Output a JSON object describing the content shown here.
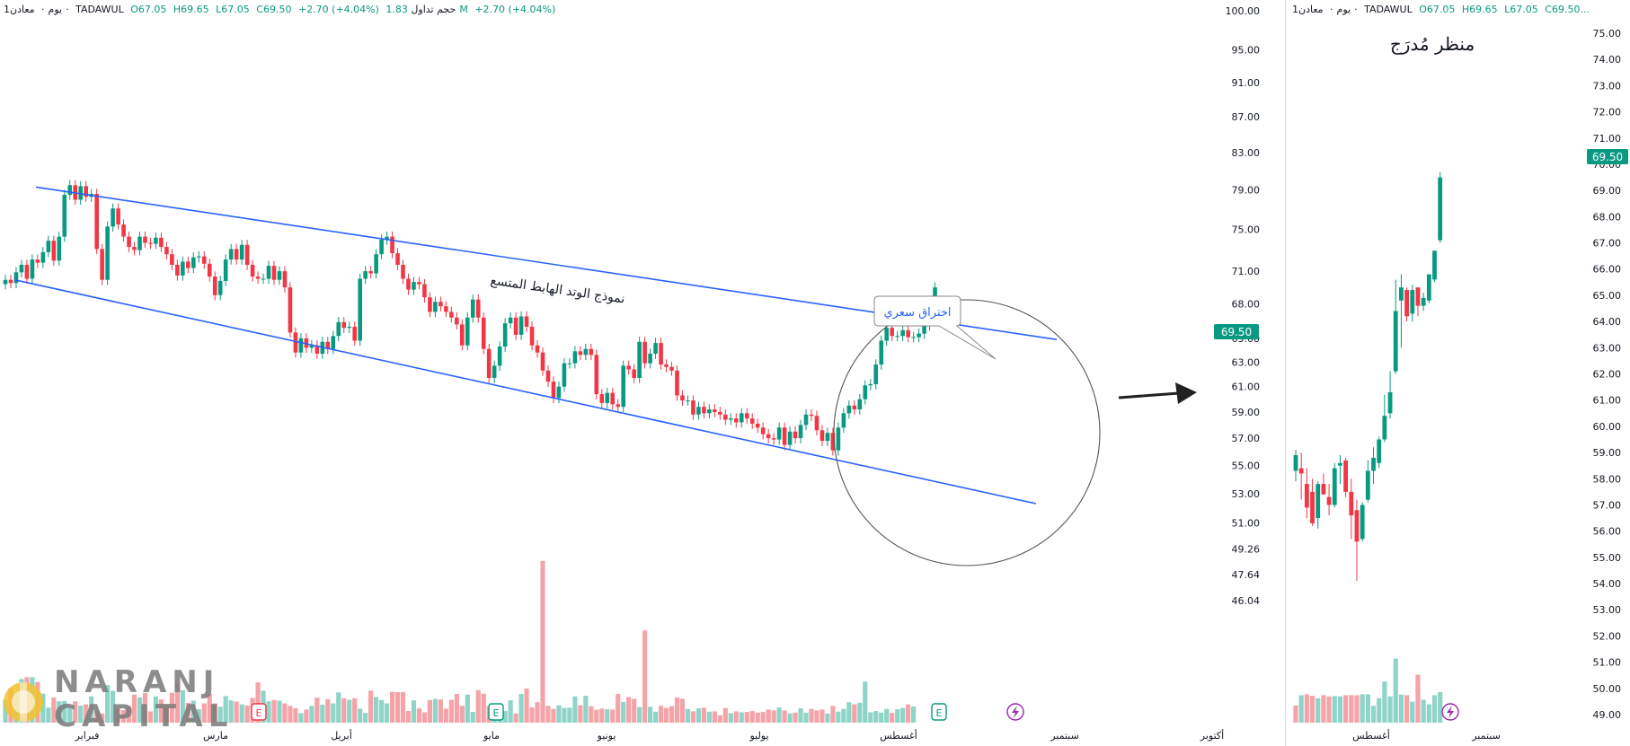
{
  "left_header": {
    "interval": "1يوم",
    "sector": "معادن",
    "exchange": "TADAWUL",
    "open": "O67.05",
    "high": "H69.65",
    "low": "L67.05",
    "close": "C69.50",
    "change": "+2.70 (+4.04%)",
    "volume_label": "حجم تداول",
    "volume_value": "1.83M",
    "volume_change": "+2.70 (+4.04%)"
  },
  "right_header": {
    "interval": "1يوم",
    "sector": "معادن",
    "exchange": "TADAWUL",
    "open": "O67.05",
    "high": "H69.65",
    "low": "L67.05",
    "close": "C69.50..."
  },
  "logo": {
    "line1": "NARANJ",
    "line2": "CAPITAL"
  },
  "colors": {
    "up": "#089981",
    "down": "#f23645",
    "vol_up": "#8fd4c8",
    "vol_down": "#f4a4a9",
    "trendline": "#2962ff",
    "circle": "#555555"
  },
  "chart_data": [
    {
      "type": "candlestick",
      "title": "",
      "annotations": {
        "pattern_label": "نموذج الوتد الهابط المتسع",
        "callout_label": "اختراق سعري",
        "current_price": "69.50"
      },
      "y_axis": {
        "scale": "log",
        "ticks": [
          "100.00",
          "95.00",
          "91.00",
          "87.00",
          "83.00",
          "79.00",
          "75.00",
          "71.00",
          "68.00",
          "65.00",
          "63.00",
          "61.00",
          "59.00",
          "57.00",
          "55.00",
          "53.00",
          "51.00",
          "49.26",
          "47.64",
          "46.04"
        ]
      },
      "x_axis": {
        "tick_labels": [
          "فبراير",
          "مارس",
          "أبريل",
          "مايو",
          "يونيو",
          "يوليو",
          "أغسطس",
          "سبتمبر",
          "أكتوبر"
        ]
      },
      "event_markers": [
        "E",
        "E",
        "E"
      ],
      "upper_trendline": {
        "from": {
          "date": "2024-01-25",
          "price": 79.3
        },
        "to": {
          "date": "2024-09-18",
          "price": 64.9
        }
      },
      "lower_trendline": {
        "from": {
          "date": "2024-01-25",
          "price": 70.2
        },
        "to": {
          "date": "2024-09-18",
          "price": 52.3
        }
      },
      "closes": [
        70.2,
        69.9,
        70.9,
        71.6,
        70.3,
        72.1,
        71.8,
        72.8,
        73.9,
        72.0,
        74.3,
        78.5,
        79.5,
        78.0,
        79.4,
        78.3,
        78.6,
        73.1,
        70.2,
        75.3,
        77.1,
        75.5,
        74.3,
        73.3,
        73.0,
        74.3,
        73.7,
        73.6,
        74.2,
        73.3,
        72.6,
        71.6,
        70.6,
        71.9,
        71.3,
        72.3,
        72.4,
        71.7,
        70.5,
        68.8,
        70.1,
        72.1,
        73.1,
        72.1,
        73.5,
        71.6,
        70.5,
        70.3,
        70.3,
        71.5,
        70.2,
        71.0,
        69.5,
        65.5,
        63.8,
        65.0,
        64.2,
        64.4,
        63.7,
        64.7,
        64.1,
        65.2,
        66.4,
        65.9,
        66.0,
        64.8,
        70.3,
        71.0,
        70.8,
        72.6,
        74.0,
        74.3,
        72.7,
        71.6,
        70.3,
        69.3,
        70.0,
        69.8,
        68.6,
        67.3,
        68.2,
        67.8,
        67.3,
        66.8,
        66.2,
        64.4,
        66.8,
        68.4,
        66.8,
        64.1,
        61.7,
        62.7,
        64.3,
        66.3,
        66.8,
        65.3,
        66.9,
        66.0,
        64.4,
        63.8,
        62.3,
        61.4,
        60.1,
        61.0,
        62.9,
        62.9,
        63.9,
        63.6,
        64.1,
        63.6,
        60.4,
        59.7,
        60.5,
        59.6,
        59.4,
        62.7,
        62.4,
        61.7,
        64.7,
        62.9,
        63.7,
        64.6,
        62.8,
        62.6,
        62.3,
        60.3,
        59.9,
        59.9,
        58.8,
        59.4,
        58.9,
        59.2,
        59.0,
        58.8,
        58.4,
        58.5,
        58.2,
        58.9,
        58.5,
        58.1,
        57.8,
        57.3,
        57.0,
        56.9,
        57.8,
        56.5,
        57.5,
        57.0,
        58.0,
        58.8,
        58.7,
        57.6,
        56.8,
        57.4,
        56.1,
        57.8,
        58.9,
        59.5,
        59.2,
        60.0,
        61.1,
        61.2,
        62.8,
        64.8,
        65.9,
        65.2,
        65.2,
        65.7,
        65.1,
        65.1,
        65.4,
        66.1,
        66.8,
        69.5
      ],
      "volumes": [
        0.74,
        1.13,
        0.92,
        1.43,
        1.49,
        1.49,
        1.33,
        0.95,
        0.49,
        0.82,
        0.7,
        0.71,
        0.51,
        0.7,
        0.56,
        0.6,
        0.86,
        0.38,
        0.3,
        1.23,
        1.05,
        0.48,
        0.41,
        0.54,
        0.92,
        0.83,
        0.97,
        0.37,
        0.86,
        0.76,
        0.6,
        0.98,
        1.28,
        1.06,
        0.65,
        0.72,
        0.44,
        0.63,
        0.95,
        0.63,
        0.52,
        0.87,
        0.73,
        0.69,
        0.6,
        0.56,
        0.81,
        1.32,
        1.05,
        0.7,
        0.74,
        0.72,
        0.63,
        0.55,
        0.47,
        0.31,
        0.43,
        0.55,
        0.82,
        0.59,
        0.77,
        0.63,
        0.99,
        0.8,
        0.75,
        0.8,
        0.46,
        0.32,
        1.05,
        0.84,
        0.74,
        0.63,
        1.01,
        1.0,
        1.0,
        0.38,
        0.73,
        0.47,
        0.34,
        0.74,
        0.78,
        0.76,
        0.46,
        0.75,
        0.94,
        0.55,
        0.92,
        0.35,
        1.07,
        0.95,
        0.54,
        0.49,
        0.62,
        0.38,
        0.73,
        0.3,
        0.94,
        1.12,
        0.5,
        0.67,
        5.3,
        0.55,
        0.45,
        0.57,
        0.48,
        0.49,
        0.86,
        0.57,
        0.88,
        0.54,
        0.42,
        0.46,
        0.44,
        0.43,
        0.94,
        0.68,
        0.84,
        0.78,
        0.51,
        3.02,
        0.52,
        0.36,
        0.55,
        0.48,
        0.54,
        0.83,
        0.78,
        0.45,
        0.37,
        0.47,
        0.49,
        0.36,
        0.37,
        0.24,
        0.48,
        0.31,
        0.37,
        0.34,
        0.35,
        0.38,
        0.33,
        0.35,
        0.43,
        0.4,
        0.5,
        0.4,
        0.3,
        0.33,
        0.47,
        0.33,
        0.45,
        0.4,
        0.43,
        0.3,
        0.55,
        0.36,
        0.45,
        0.67,
        0.6,
        0.65,
        1.35,
        0.34,
        0.38,
        0.33,
        0.45,
        0.32,
        0.44,
        0.48,
        0.6,
        0.53
      ]
    },
    {
      "type": "candlestick",
      "title": "منظر مُدرَج",
      "y_axis": {
        "scale": "linear",
        "ticks": [
          "75.00",
          "74.00",
          "73.00",
          "72.00",
          "71.00",
          "70.00",
          "69.00",
          "68.00",
          "67.00",
          "66.00",
          "65.00",
          "64.00",
          "63.00",
          "62.00",
          "61.00",
          "60.00",
          "59.00",
          "58.00",
          "57.00",
          "56.00",
          "55.00",
          "54.00",
          "53.00",
          "52.00",
          "51.00",
          "50.00",
          "49.00"
        ]
      },
      "x_axis": {
        "tick_labels": [
          "أغسطس",
          "سبتمبر"
        ]
      },
      "current_price": "69.50",
      "candles": [
        {
          "o": 58.3,
          "h": 59.1,
          "l": 57.9,
          "c": 58.9
        },
        {
          "o": 58.4,
          "h": 59.0,
          "l": 57.2,
          "c": 58.2
        },
        {
          "o": 57.8,
          "h": 58.4,
          "l": 56.5,
          "c": 56.9
        },
        {
          "o": 57.5,
          "h": 58.0,
          "l": 56.2,
          "c": 56.3
        },
        {
          "o": 56.5,
          "h": 57.9,
          "l": 56.1,
          "c": 57.8
        },
        {
          "o": 57.8,
          "h": 58.2,
          "l": 57.4,
          "c": 57.4
        },
        {
          "o": 57.3,
          "h": 57.8,
          "l": 56.6,
          "c": 57.0
        },
        {
          "o": 57.0,
          "h": 58.6,
          "l": 56.9,
          "c": 58.4
        },
        {
          "o": 58.5,
          "h": 58.9,
          "l": 57.8,
          "c": 58.6
        },
        {
          "o": 58.7,
          "h": 58.8,
          "l": 57.3,
          "c": 57.5
        },
        {
          "o": 57.5,
          "h": 58.0,
          "l": 55.7,
          "c": 56.6
        },
        {
          "o": 56.8,
          "h": 57.2,
          "l": 54.1,
          "c": 55.6
        },
        {
          "o": 55.7,
          "h": 57.1,
          "l": 55.6,
          "c": 57.0
        },
        {
          "o": 57.2,
          "h": 58.7,
          "l": 57.1,
          "c": 58.3
        },
        {
          "o": 58.3,
          "h": 59.2,
          "l": 57.8,
          "c": 58.8
        },
        {
          "o": 58.6,
          "h": 59.6,
          "l": 58.4,
          "c": 59.5
        },
        {
          "o": 59.5,
          "h": 61.2,
          "l": 59.4,
          "c": 60.4
        },
        {
          "o": 60.5,
          "h": 62.1,
          "l": 60.3,
          "c": 61.3
        },
        {
          "o": 62.1,
          "h": 65.6,
          "l": 62.0,
          "c": 64.4
        },
        {
          "o": 64.8,
          "h": 65.8,
          "l": 63.0,
          "c": 65.3
        },
        {
          "o": 65.2,
          "h": 65.3,
          "l": 64.0,
          "c": 64.2
        },
        {
          "o": 64.3,
          "h": 65.4,
          "l": 64.0,
          "c": 65.2
        },
        {
          "o": 65.3,
          "h": 65.3,
          "l": 64.2,
          "c": 64.6
        },
        {
          "o": 64.6,
          "h": 65.1,
          "l": 64.4,
          "c": 64.9
        },
        {
          "o": 64.8,
          "h": 65.8,
          "l": 64.7,
          "c": 65.8
        },
        {
          "o": 65.6,
          "h": 66.7,
          "l": 65.5,
          "c": 66.7
        },
        {
          "o": 67.1,
          "h": 69.7,
          "l": 67.0,
          "c": 69.5
        }
      ],
      "volumes": [
        0.56,
        0.9,
        0.93,
        0.88,
        0.8,
        0.9,
        0.86,
        0.87,
        0.86,
        0.9,
        0.9,
        0.9,
        0.93,
        0.93,
        0.55,
        0.8,
        1.35,
        0.86,
        2.1,
        0.92,
        0.9,
        0.69,
        1.57,
        0.75,
        0.6,
        0.9,
        1.0
      ],
      "vol_up": [
        false,
        true,
        false,
        false,
        true,
        false,
        false,
        true,
        true,
        false,
        false,
        false,
        true,
        true,
        true,
        true,
        true,
        true,
        true,
        true,
        false,
        true,
        false,
        true,
        true,
        true,
        true
      ],
      "event_markers": [
        ""
      ]
    }
  ]
}
